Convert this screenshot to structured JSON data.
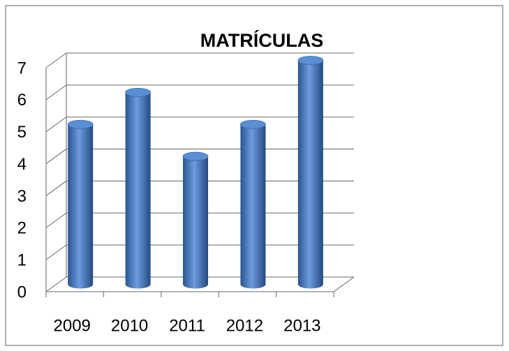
{
  "chart_data": {
    "type": "bar3d",
    "title": "MATRÍCULAS",
    "categories": [
      "2009",
      "2010",
      "2011",
      "2012",
      "2013"
    ],
    "values": [
      5,
      6,
      4,
      5,
      7
    ],
    "color": "#4a7ebb",
    "ylim": [
      0,
      7
    ],
    "yticks": [
      0,
      1,
      2,
      3,
      4,
      5,
      6,
      7
    ],
    "grid": true
  }
}
